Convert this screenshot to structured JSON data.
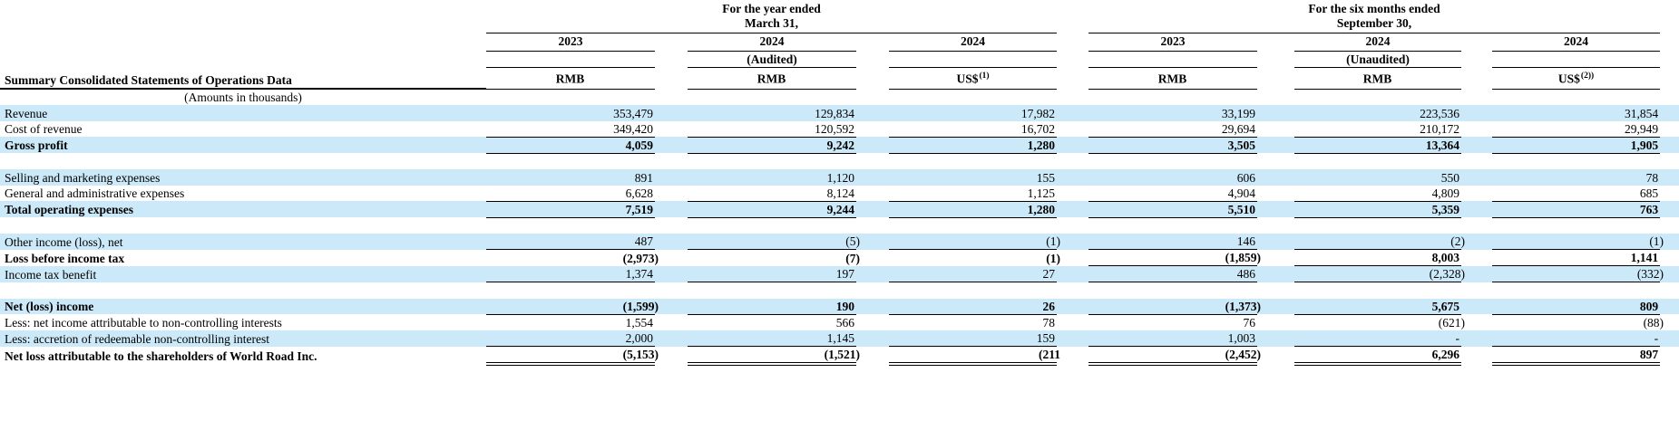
{
  "colors": {
    "row_highlight": "#cbe9f8",
    "text": "#000000",
    "rule_line": "#000000"
  },
  "table": {
    "corner_label": "Summary Consolidated Statements of Operations Data",
    "amounts_note": "(Amounts in thousands)",
    "groups": [
      {
        "title_line1": "For the year ended",
        "title_line2": "March 31,"
      },
      {
        "title_line1": "For the six months ended",
        "title_line2": "September 30,"
      }
    ],
    "years": [
      "2023",
      "2024",
      "2024",
      "2023",
      "2024",
      "2024"
    ],
    "audit_labels": [
      "(Audited)",
      "(Unaudited)"
    ],
    "units": [
      {
        "text": "RMB",
        "sup": ""
      },
      {
        "text": "RMB",
        "sup": ""
      },
      {
        "text": "US$",
        "sup": "(1)"
      },
      {
        "text": "RMB",
        "sup": ""
      },
      {
        "text": "RMB",
        "sup": ""
      },
      {
        "text": "US$",
        "sup": "(2))"
      }
    ],
    "rows": [
      {
        "label": "Revenue",
        "values": [
          "353,479",
          "129,834",
          "17,982",
          "33,199",
          "223,536",
          "31,854"
        ],
        "shade": true,
        "bold": false,
        "underline": "none"
      },
      {
        "label": "Cost of revenue",
        "values": [
          "349,420",
          "120,592",
          "16,702",
          "29,694",
          "210,172",
          "29,949"
        ],
        "shade": false,
        "bold": false,
        "underline": "all"
      },
      {
        "label": "Gross profit",
        "values": [
          "4,059",
          "9,242",
          "1,280",
          "3,505",
          "13,364",
          "1,905"
        ],
        "shade": true,
        "bold": true,
        "underline": "all"
      },
      {
        "spacer": true
      },
      {
        "label": "Selling and marketing expenses",
        "values": [
          "891",
          "1,120",
          "155",
          "606",
          "550",
          "78"
        ],
        "shade": true,
        "bold": false,
        "underline": "none"
      },
      {
        "label": "General and administrative expenses",
        "values": [
          "6,628",
          "8,124",
          "1,125",
          "4,904",
          "4,809",
          "685"
        ],
        "shade": false,
        "bold": false,
        "underline": "all"
      },
      {
        "label": "Total operating expenses",
        "values": [
          "7,519",
          "9,244",
          "1,280",
          "5,510",
          "5,359",
          "763"
        ],
        "shade": true,
        "bold": true,
        "underline": "all"
      },
      {
        "spacer": true
      },
      {
        "label": "Other income (loss), net",
        "values": [
          "487",
          "(5)",
          "(1)",
          "146",
          "(2)",
          "(1)"
        ],
        "shade": true,
        "bold": false,
        "underline": "all"
      },
      {
        "label": "Loss before income tax",
        "values": [
          "(2,973)",
          "(7)",
          "(1)",
          "(1,859)",
          "8,003",
          "1,141"
        ],
        "shade": false,
        "bold": true,
        "underline": "right3"
      },
      {
        "label": "Income tax benefit",
        "values": [
          "1,374",
          "197",
          "27",
          "486",
          "(2,328)",
          "(332)"
        ],
        "shade": true,
        "bold": false,
        "underline": "all"
      },
      {
        "spacer": true
      },
      {
        "label": "Net (loss) income",
        "values": [
          "(1,599)",
          "190",
          "26",
          "(1,373)",
          "5,675",
          "809"
        ],
        "shade": true,
        "bold": true,
        "underline": "all"
      },
      {
        "label": "Less: net income attributable to non-controlling interests",
        "values": [
          "1,554",
          "566",
          "78",
          "76",
          "(621)",
          "(88)"
        ],
        "shade": false,
        "bold": false,
        "underline": "none"
      },
      {
        "label": "Less: accretion of redeemable non-controlling interest",
        "values": [
          "2,000",
          "1,145",
          "159",
          "1,003",
          "-",
          "-"
        ],
        "shade": true,
        "bold": false,
        "underline": "all"
      },
      {
        "label": "Net loss attributable to the shareholders of World Road Inc.",
        "values": [
          "(5,153)",
          "(1,521)",
          "(211",
          "(2,452)",
          "6,296",
          "897"
        ],
        "shade": false,
        "bold": true,
        "underline": "double"
      }
    ]
  }
}
